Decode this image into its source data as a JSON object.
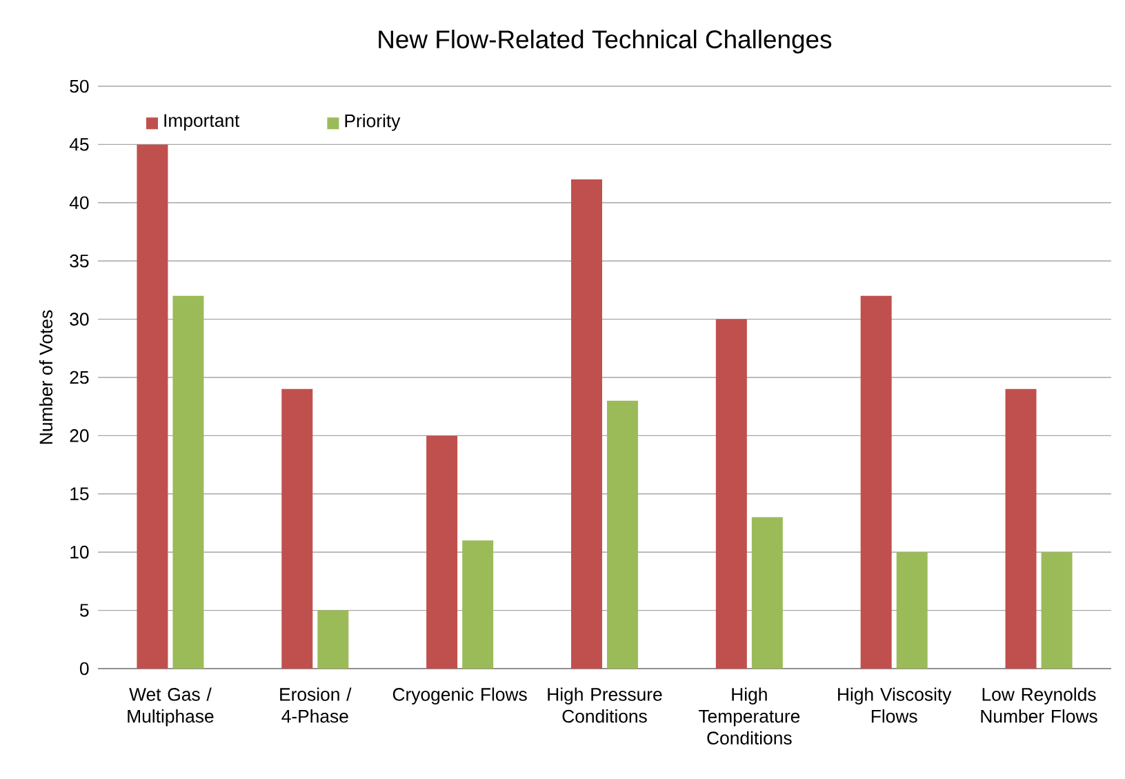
{
  "chart_data": {
    "type": "bar",
    "title": "New Flow-Related Technical Challenges",
    "ylabel": "Number of Votes",
    "categories": [
      "Wet Gas / Multiphase",
      "Erosion / 4-Phase",
      "Cryogenic Flows",
      "High Pressure Conditions",
      "High Temperature Conditions",
      "High Viscosity Flows",
      "Low Reynolds Number Flows"
    ],
    "series": [
      {
        "name": "Important",
        "color": "#c0504d",
        "values": [
          45,
          24,
          20,
          42,
          30,
          32,
          24
        ]
      },
      {
        "name": "Priority",
        "color": "#9bbb59",
        "values": [
          32,
          5,
          11,
          23,
          13,
          10,
          10
        ]
      }
    ],
    "ylim": [
      0,
      50
    ],
    "yticks": [
      0,
      5,
      10,
      15,
      20,
      25,
      30,
      35,
      40,
      45,
      50
    ],
    "grid": "y",
    "legend": "top left"
  }
}
